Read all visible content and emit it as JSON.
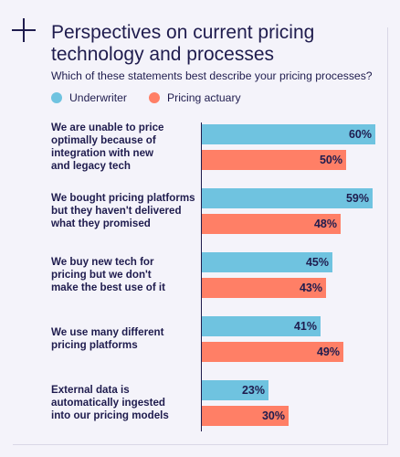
{
  "header": {
    "title": "Perspectives on current pricing technology and processes",
    "subtitle": "Which of these statements best describe your pricing processes?"
  },
  "legend": [
    {
      "label": "Underwriter",
      "color": "#6fc3e0"
    },
    {
      "label": "Pricing actuary",
      "color": "#ff7f66"
    }
  ],
  "chart_data": {
    "type": "bar",
    "orientation": "horizontal",
    "title": "Perspectives on current pricing technology and processes",
    "subtitle": "Which of these statements best describe your pricing processes?",
    "categories": [
      "We are unable to price optimally because of integration with new and legacy tech",
      "We bought pricing platforms but they haven't delivered what they promised",
      "We buy new tech for pricing but we don't make the best use of it",
      "We use many different pricing platforms",
      "External data is automatically ingested into our pricing models"
    ],
    "category_lines": [
      [
        "We are unable to price",
        "optimally because of",
        "integration with new",
        "and legacy tech"
      ],
      [
        "We bought pricing platforms",
        "but they haven't delivered",
        "what they promised"
      ],
      [
        "We buy new tech for",
        "pricing but we don't",
        "make the best use of it"
      ],
      [
        "We use many different",
        "pricing platforms"
      ],
      [
        "External data is",
        "automatically ingested",
        "into our pricing models"
      ]
    ],
    "series": [
      {
        "name": "Underwriter",
        "color": "#6fc3e0",
        "values": [
          60,
          59,
          45,
          41,
          23
        ],
        "labels": [
          "60%",
          "59%",
          "45%",
          "41%",
          "23%"
        ]
      },
      {
        "name": "Pricing actuary",
        "color": "#ff7f66",
        "values": [
          50,
          48,
          43,
          49,
          30
        ],
        "labels": [
          "50%",
          "48%",
          "43%",
          "49%",
          "30%"
        ]
      }
    ],
    "xlim": [
      0,
      60
    ],
    "grid": false,
    "legend_position": "top-left"
  }
}
